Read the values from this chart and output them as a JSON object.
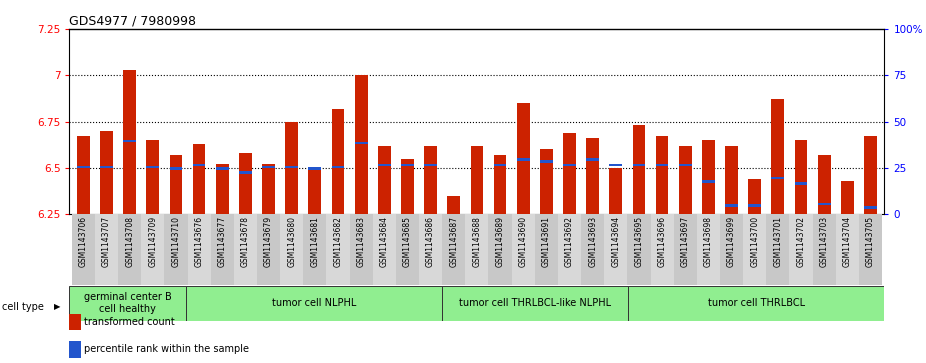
{
  "title": "GDS4977 / 7980998",
  "ylim_left": [
    6.25,
    7.25
  ],
  "ylim_right": [
    0,
    100
  ],
  "yticks_left": [
    6.25,
    6.5,
    6.75,
    7.0,
    7.25
  ],
  "ytick_labels_left": [
    "6.25",
    "6.5",
    "6.75",
    "7",
    "7.25"
  ],
  "yticks_right": [
    0,
    25,
    50,
    75,
    100
  ],
  "ytick_labels_right": [
    "0",
    "25",
    "50",
    "75",
    "100%"
  ],
  "samples": [
    "GSM1143706",
    "GSM1143707",
    "GSM1143708",
    "GSM1143709",
    "GSM1143710",
    "GSM1143676",
    "GSM1143677",
    "GSM1143678",
    "GSM1143679",
    "GSM1143680",
    "GSM1143681",
    "GSM1143682",
    "GSM1143683",
    "GSM1143684",
    "GSM1143685",
    "GSM1143686",
    "GSM1143687",
    "GSM1143688",
    "GSM1143689",
    "GSM1143690",
    "GSM1143691",
    "GSM1143692",
    "GSM1143693",
    "GSM1143694",
    "GSM1143695",
    "GSM1143696",
    "GSM1143697",
    "GSM1143698",
    "GSM1143699",
    "GSM1143700",
    "GSM1143701",
    "GSM1143702",
    "GSM1143703",
    "GSM1143704",
    "GSM1143705"
  ],
  "red_values": [
    6.67,
    6.7,
    7.03,
    6.65,
    6.57,
    6.63,
    6.52,
    6.58,
    6.52,
    6.75,
    6.5,
    6.82,
    7.0,
    6.62,
    6.55,
    6.62,
    6.35,
    6.62,
    6.57,
    6.85,
    6.6,
    6.69,
    6.66,
    6.5,
    6.73,
    6.67,
    6.62,
    6.65,
    6.62,
    6.44,
    6.87,
    6.65,
    6.57,
    6.43,
    6.67
  ],
  "blue_values": [
    6.505,
    6.505,
    6.645,
    6.505,
    6.495,
    6.515,
    6.495,
    6.475,
    6.505,
    6.505,
    6.495,
    6.505,
    6.635,
    6.515,
    6.515,
    6.515,
    6.18,
    6.19,
    6.515,
    6.545,
    6.535,
    6.515,
    6.545,
    6.515,
    6.515,
    6.515,
    6.515,
    6.425,
    6.295,
    6.295,
    6.445,
    6.415,
    6.305,
    6.225,
    6.285
  ],
  "bar_color_red": "#cc2200",
  "bar_color_blue": "#2255cc",
  "bar_width": 0.55,
  "group_boundaries": [
    {
      "label": "germinal center B\ncell healthy",
      "start": 0,
      "end": 5,
      "color": "#90EE90"
    },
    {
      "label": "tumor cell NLPHL",
      "start": 5,
      "end": 16,
      "color": "#90EE90"
    },
    {
      "label": "tumor cell THRLBCL-like NLPHL",
      "start": 16,
      "end": 24,
      "color": "#90EE90"
    },
    {
      "label": "tumor cell THRLBCL",
      "start": 24,
      "end": 35,
      "color": "#90EE90"
    }
  ]
}
